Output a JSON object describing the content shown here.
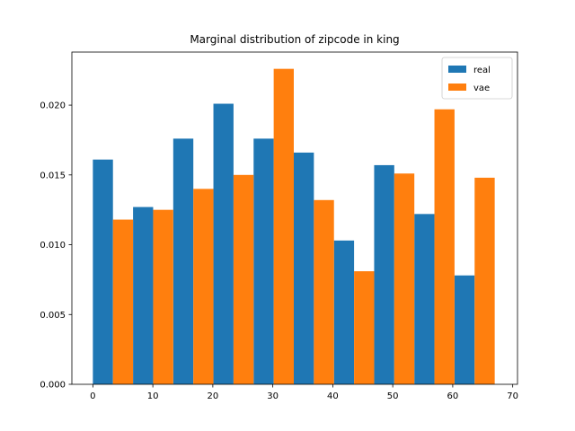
{
  "chart_data": {
    "type": "bar",
    "title": "Marginal distribution of zipcode in king",
    "xlabel": "",
    "ylabel": "",
    "xlim": [
      -3.5,
      70.8
    ],
    "ylim": [
      0,
      0.0238
    ],
    "xticks": [
      0,
      10,
      20,
      30,
      40,
      50,
      60,
      70
    ],
    "yticks": [
      0.0,
      0.005,
      0.01,
      0.015,
      0.02
    ],
    "ytick_labels": [
      "0.000",
      "0.005",
      "0.010",
      "0.015",
      "0.020"
    ],
    "bin_edges": [
      0.0,
      6.7,
      13.4,
      20.1,
      26.8,
      33.5,
      40.2,
      46.9,
      53.6,
      60.3,
      67.0
    ],
    "legend_position": "top-right",
    "series": [
      {
        "name": "real",
        "color": "#1f77b4",
        "values": [
          0.0161,
          0.0127,
          0.0176,
          0.0201,
          0.0176,
          0.0166,
          0.0103,
          0.0157,
          0.0122,
          0.0078
        ]
      },
      {
        "name": "vae",
        "color": "#ff7f0e",
        "values": [
          0.0118,
          0.0125,
          0.014,
          0.015,
          0.0226,
          0.0132,
          0.0081,
          0.0151,
          0.0197,
          0.0148
        ]
      }
    ]
  }
}
